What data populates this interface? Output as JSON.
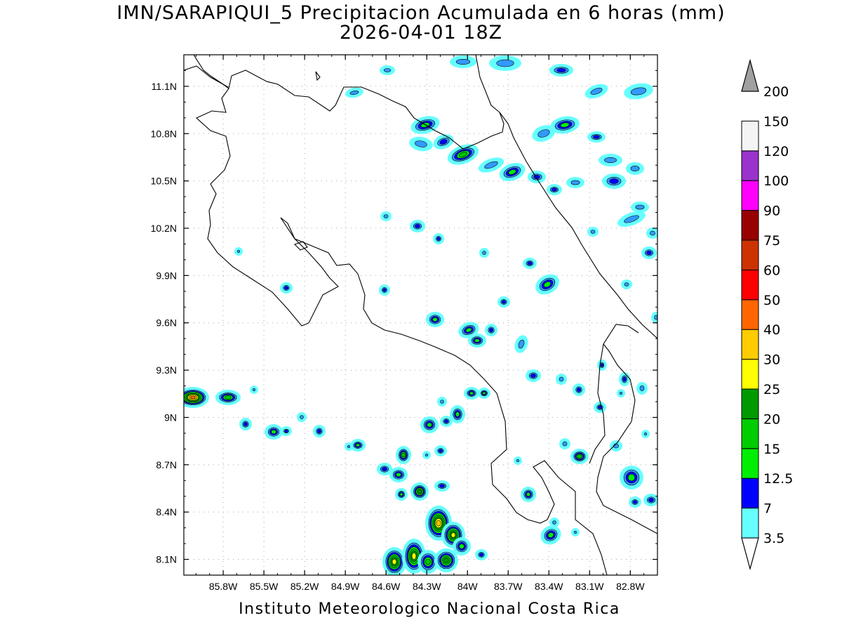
{
  "title": {
    "line1": "IMN/SARAPIQUI_5 Precipitacion Acumulada en 6 horas (mm)",
    "line2": "2026-04-01 18Z"
  },
  "footer": "Instituto Meteorologico Nacional Costa Rica",
  "map": {
    "lon_range": [
      -86.09,
      -82.6
    ],
    "lat_range": [
      8.0,
      11.3
    ],
    "x_tick_labels": [
      "85.8W",
      "85.5W",
      "85.2W",
      "84.9W",
      "84.6W",
      "84.3W",
      "84W",
      "83.7W",
      "83.4W",
      "83.1W",
      "82.8W"
    ],
    "y_tick_labels": [
      "11.1N",
      "10.8N",
      "10.5N",
      "10.2N",
      "9.9N",
      "9.6N",
      "9.3N",
      "9N",
      "8.7N",
      "8.4N",
      "8.1N"
    ],
    "grid": "dotted"
  },
  "legend": {
    "units": "mm",
    "levels": [
      "3.5",
      "7",
      "12.5",
      "15",
      "20",
      "25",
      "30",
      "40",
      "50",
      "60",
      "75",
      "90",
      "100",
      "120",
      "150",
      "200"
    ],
    "colors": [
      "#66ffff",
      "#3399ff",
      "#0000ff",
      "#00ee00",
      "#00cc00",
      "#009900",
      "#ffff00",
      "#ffcc00",
      "#ff6600",
      "#ff0000",
      "#cc3300",
      "#990000",
      "#ff00ff",
      "#9933cc",
      "#f4f4f4",
      "#a0a0a0"
    ]
  }
}
